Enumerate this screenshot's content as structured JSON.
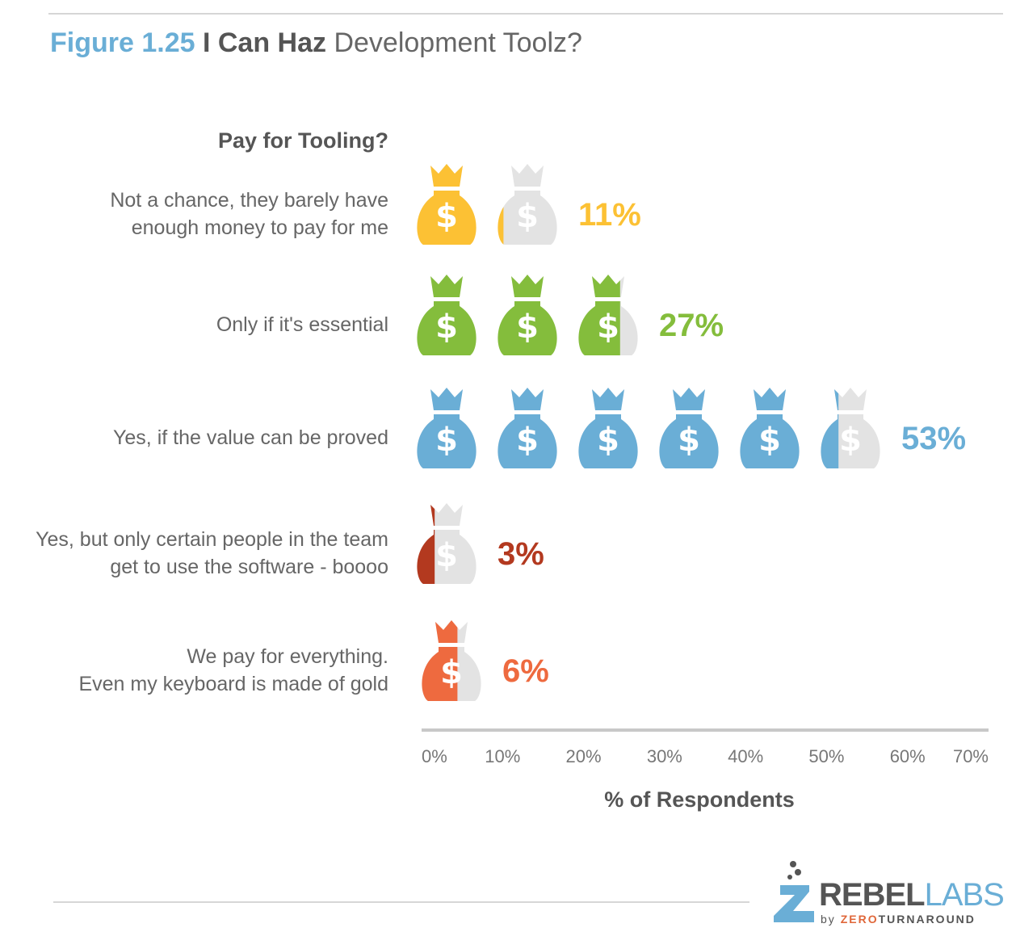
{
  "figure": {
    "number": "Figure 1.25",
    "title_bold": "I Can Haz",
    "title_light": "Development Toolz?"
  },
  "chart_data": {
    "type": "bar",
    "title": "Pay for Tooling?",
    "xlabel": "% of Respondents",
    "xlim": [
      0,
      70
    ],
    "xticks": [
      "0%",
      "10%",
      "20%",
      "30%",
      "40%",
      "50%",
      "60%",
      "70%"
    ],
    "categories": [
      [
        "Not a chance, they barely have",
        "enough money to pay for me"
      ],
      [
        "Only if it's essential"
      ],
      [
        "Yes, if the value can be proved"
      ],
      [
        "Yes, but only certain people in the team",
        "get to use the software - boooo"
      ],
      [
        "We pay for everything.",
        "Even my keyboard is made of gold"
      ]
    ],
    "values": [
      11,
      27,
      53,
      3,
      6
    ],
    "value_labels": [
      "11%",
      "27%",
      "53%",
      "3%",
      "6%"
    ],
    "colors": [
      "#fcc134",
      "#84bd3c",
      "#6aaed6",
      "#b3391f",
      "#ee6a3f"
    ],
    "icon": "money-bag-icon",
    "icon_symbol": "$",
    "empty_color": "#e3e3e3"
  },
  "logo": {
    "rebel": "REBEL",
    "labs": "LABS",
    "by": "by",
    "zero": "ZERO",
    "turnaround": "TURNAROUND"
  }
}
